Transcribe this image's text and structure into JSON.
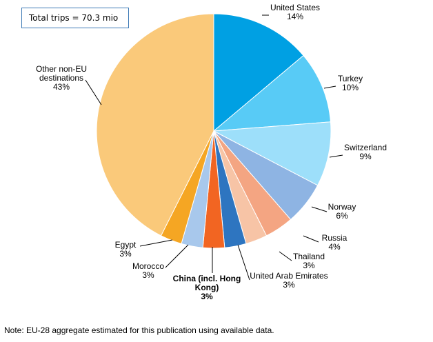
{
  "chart_data": {
    "type": "pie",
    "annotation": "Total trips = 70.3 mio",
    "note": "Note: EU-28 aggregate estimated for this publication using available data.",
    "slices": [
      {
        "label": "United States",
        "label_lines": [
          "United States"
        ],
        "value": 14,
        "pct_label": "14%",
        "color": "#00a0e3",
        "bold": false
      },
      {
        "label": "Turkey",
        "label_lines": [
          "Turkey"
        ],
        "value": 10,
        "pct_label": "10%",
        "color": "#58cbf6",
        "bold": false
      },
      {
        "label": "Switzerland",
        "label_lines": [
          "Switzerland"
        ],
        "value": 9,
        "pct_label": "9%",
        "color": "#9ddffa",
        "bold": false
      },
      {
        "label": "Norway",
        "label_lines": [
          "Norway"
        ],
        "value": 6,
        "pct_label": "6%",
        "color": "#8eb4e3",
        "bold": false
      },
      {
        "label": "Russia",
        "label_lines": [
          "Russia"
        ],
        "value": 4,
        "pct_label": "4%",
        "color": "#f4a582",
        "bold": false
      },
      {
        "label": "Thailand",
        "label_lines": [
          "Thailand"
        ],
        "value": 3,
        "pct_label": "3%",
        "color": "#f7c4a6",
        "bold": false
      },
      {
        "label": "United Arab Emirates",
        "label_lines": [
          "United Arab Emirates"
        ],
        "value": 3,
        "pct_label": "3%",
        "color": "#2e75c0",
        "bold": false
      },
      {
        "label": "China (incl. Hong Kong)",
        "label_lines": [
          "China (incl. Hong",
          "Kong)"
        ],
        "value": 3,
        "pct_label": "3%",
        "color": "#f26522",
        "bold": true
      },
      {
        "label": "Morocco",
        "label_lines": [
          "Morocco"
        ],
        "value": 3,
        "pct_label": "3%",
        "color": "#a8c8ec",
        "bold": false
      },
      {
        "label": "Egypt",
        "label_lines": [
          "Egypt"
        ],
        "value": 3,
        "pct_label": "3%",
        "color": "#f5a623",
        "bold": false
      },
      {
        "label": "Other non-EU destinations",
        "label_lines": [
          "Other non-EU",
          "destinations"
        ],
        "value": 43,
        "pct_label": "43%",
        "color": "#fac97a",
        "bold": false
      }
    ]
  }
}
